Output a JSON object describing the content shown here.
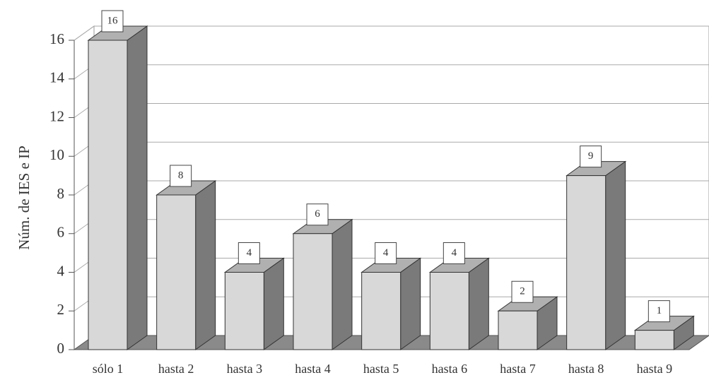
{
  "chart_data": {
    "type": "bar3d",
    "y_label": "Núm. de IES e IP",
    "categories": [
      "sólo 1",
      "hasta 2",
      "hasta 3",
      "hasta 4",
      "hasta 5",
      "hasta 6",
      "hasta 7",
      "hasta 8",
      "hasta 9"
    ],
    "values": [
      16,
      8,
      4,
      6,
      4,
      4,
      2,
      9,
      1
    ],
    "ylim": [
      0,
      16
    ],
    "yticks": [
      0,
      2,
      4,
      6,
      8,
      10,
      12,
      14,
      16
    ],
    "grid": true,
    "front_color": "#d8d8d8",
    "side_color": "#7a7a7a",
    "top_color": "#b0b0b0"
  }
}
